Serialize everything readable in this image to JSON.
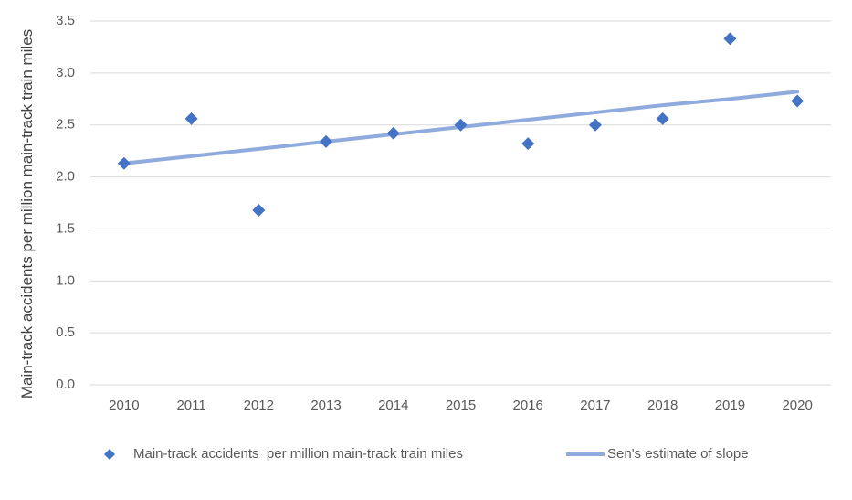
{
  "chart_data": {
    "type": "scatter",
    "y_label": "Main-track accidents per million main-track train miles",
    "categories": [
      "2010",
      "2011",
      "2012",
      "2013",
      "2014",
      "2015",
      "2016",
      "2017",
      "2018",
      "2019",
      "2020"
    ],
    "series": [
      {
        "name": "Main-track accidents  per million main-track train miles",
        "type": "scatter",
        "color": "#4472c4",
        "values": [
          2.13,
          2.56,
          1.68,
          2.34,
          2.42,
          2.5,
          2.32,
          2.5,
          2.56,
          3.33,
          2.73
        ]
      },
      {
        "name": "Sen's estimate of slope",
        "type": "line",
        "color": "#8faadc",
        "values": [
          2.13,
          2.2,
          2.27,
          2.34,
          2.41,
          2.48,
          2.55,
          2.62,
          2.69,
          2.75,
          2.82
        ]
      }
    ],
    "ylim": [
      0,
      3.5
    ],
    "yticks": [
      {
        "value": 0,
        "label": "0.0"
      },
      0.5,
      {
        "value": 1,
        "label": "1.0"
      },
      1.5,
      {
        "value": 2,
        "label": "2.0"
      },
      2.5,
      {
        "value": 3,
        "label": "3.0"
      },
      3.5
    ],
    "grid": true,
    "legend": "bottom"
  }
}
